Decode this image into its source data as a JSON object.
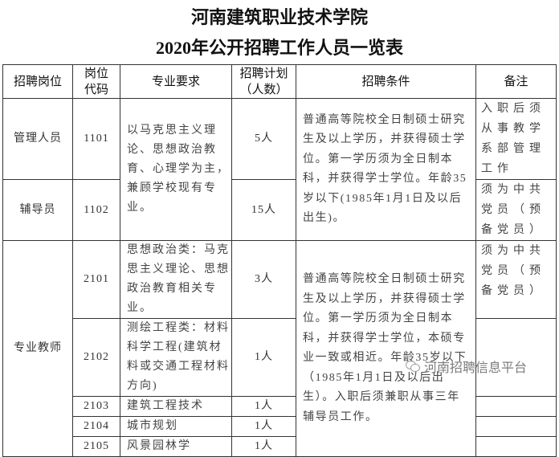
{
  "title_line1": "河南建筑职业技术学院",
  "title_line2": "2020年公开招聘工作人员一览表",
  "table": {
    "headers": {
      "position": "招聘岗位",
      "code": "岗位代码",
      "major": "专业要求",
      "plan": "招聘计划（人数）",
      "conditions": "招聘条件",
      "notes": "备注"
    },
    "groups": [
      {
        "major": "以马克思主义理论、思想政治教育、心理学为主，兼顾学校现有专业。",
        "conditions": "普通高等院校全日制硕士研究生及以上学历，并获得硕士学位。第一学历须为全日制本科，并获得学士学位。年龄35岁以下(1985年1月1日及以后出生)。",
        "rows": [
          {
            "position": "管理人员",
            "code": "1101",
            "plan": "5人",
            "note": "入职后须从事教学系部管理工作"
          },
          {
            "position": "辅导员",
            "code": "1102",
            "plan": "15人",
            "note": "须为中共党员（预备党员）"
          }
        ]
      },
      {
        "position": "专业教师",
        "conditions": "普通高等院校全日制硕士研究生及以上学历，并获得硕士学位。第一学历须为全日制本科，并获得学士学位，本硕专业一致或相近。年龄35岁以下（1985年1月1日及以后出生）。入职后须兼职从事三年辅导员工作。",
        "rows": [
          {
            "code": "2101",
            "major": "思想政治类：马克思主义理论、思想政治教育相关专业。",
            "plan": "3人",
            "note": "须为中共党员（预备党员）"
          },
          {
            "code": "2102",
            "major": "测绘工程类：材料科学工程(建筑材料或交通工程材料方向)",
            "plan": "1人",
            "note": ""
          },
          {
            "code": "2103",
            "major": "建筑工程技术",
            "plan": "1人",
            "note": ""
          },
          {
            "code": "2104",
            "major": "城市规划",
            "plan": "1人",
            "note": ""
          },
          {
            "code": "2105",
            "major": "风景园林学",
            "plan": "1人",
            "note": ""
          }
        ]
      }
    ]
  },
  "watermark": "河南招聘信息平台"
}
